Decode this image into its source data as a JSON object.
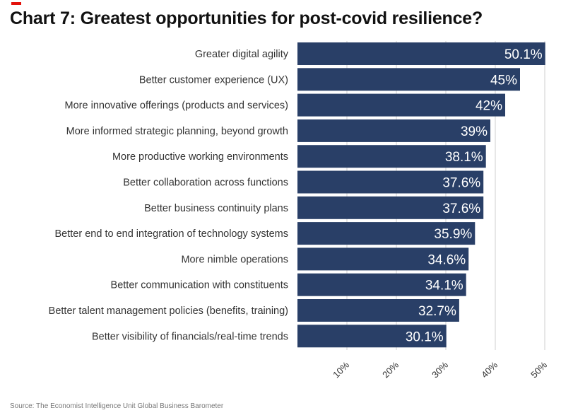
{
  "title": "Chart 7: Greatest opportunities for post-covid resilience?",
  "source": "Source: The Economist Intelligence Unit Global Business Barometer",
  "colors": {
    "accent": "#e3120b",
    "bar": "#293f67",
    "grid": "#cfcfcf",
    "label": "#333333",
    "value_label": "#ffffff"
  },
  "chart_data": {
    "type": "bar",
    "orientation": "horizontal",
    "title": "Chart 7: Greatest opportunities for post-covid resilience?",
    "categories": [
      "Greater digital agility",
      "Better customer experience (UX)",
      "More innovative offerings (products and services)",
      "More informed strategic planning, beyond growth",
      "More productive working environments",
      "Better collaboration across functions",
      "Better business continuity plans",
      "Better end to end integration of technology systems",
      "More nimble operations",
      "Better communication with constituents",
      "Better talent management policies (benefits, training)",
      "Better visibility of financials/real-time trends"
    ],
    "values": [
      50.1,
      45,
      42,
      39,
      38.1,
      37.6,
      37.6,
      35.9,
      34.6,
      34.1,
      32.7,
      30.1
    ],
    "value_labels": [
      "50.1%",
      "45%",
      "42%",
      "39%",
      "38.1%",
      "37.6%",
      "37.6%",
      "35.9%",
      "34.6%",
      "34.1%",
      "32.7%",
      "30.1%"
    ],
    "x_ticks": [
      10,
      20,
      30,
      40,
      50
    ],
    "x_tick_labels": [
      "10%",
      "20%",
      "30%",
      "40%",
      "50%"
    ],
    "xlim": [
      0,
      50
    ],
    "xlabel": "",
    "ylabel": "",
    "grid": true
  }
}
